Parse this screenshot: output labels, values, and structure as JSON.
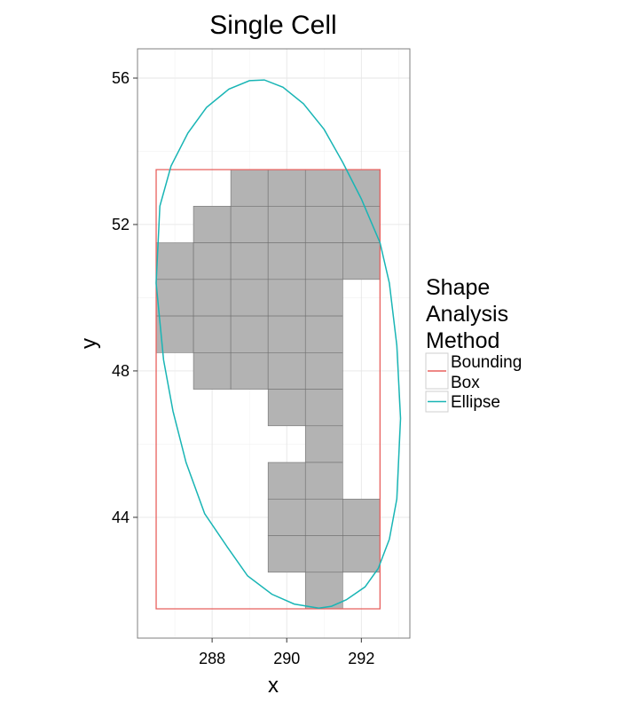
{
  "chart_data": {
    "type": "map",
    "title": "Single Cell",
    "xlabel": "x",
    "ylabel": "y",
    "xlim": [
      286.0,
      293.3
    ],
    "ylim": [
      40.7,
      56.8
    ],
    "x_ticks": [
      288,
      290,
      292
    ],
    "y_ticks": [
      44,
      48,
      52,
      56
    ],
    "x_tick_labels": [
      "288",
      "290",
      "292"
    ],
    "y_tick_labels": [
      "44",
      "48",
      "52",
      "56"
    ],
    "grid": true,
    "colors": {
      "tile_fill": "#b3b3b3",
      "tile_stroke": "#707070",
      "bounding_box": "#e8605e",
      "ellipse": "#19b5b5"
    },
    "tiles": {
      "cell_size": 1,
      "cells": [
        [
          289,
          53
        ],
        [
          290,
          53
        ],
        [
          291,
          53
        ],
        [
          292,
          53
        ],
        [
          288,
          52
        ],
        [
          289,
          52
        ],
        [
          290,
          52
        ],
        [
          291,
          52
        ],
        [
          292,
          52
        ],
        [
          287,
          51
        ],
        [
          288,
          51
        ],
        [
          289,
          51
        ],
        [
          290,
          51
        ],
        [
          291,
          51
        ],
        [
          292,
          51
        ],
        [
          287,
          50
        ],
        [
          288,
          50
        ],
        [
          289,
          50
        ],
        [
          290,
          50
        ],
        [
          291,
          50
        ],
        [
          287,
          49
        ],
        [
          288,
          49
        ],
        [
          289,
          49
        ],
        [
          290,
          49
        ],
        [
          291,
          49
        ],
        [
          288,
          48
        ],
        [
          289,
          48
        ],
        [
          290,
          48
        ],
        [
          291,
          48
        ],
        [
          290,
          47
        ],
        [
          291,
          47
        ],
        [
          291,
          46
        ],
        [
          290,
          45
        ],
        [
          291,
          45
        ],
        [
          290,
          44
        ],
        [
          291,
          44
        ],
        [
          292,
          44
        ],
        [
          290,
          43
        ],
        [
          291,
          43
        ],
        [
          292,
          43
        ],
        [
          291,
          42
        ]
      ]
    },
    "bounding_box": {
      "x_min": 286.5,
      "x_max": 292.5,
      "y_min": 41.5,
      "y_max": 53.5
    },
    "ellipse": {
      "points": [
        [
          290.86,
          41.52
        ],
        [
          290.2,
          41.63
        ],
        [
          289.6,
          41.9
        ],
        [
          288.95,
          42.4
        ],
        [
          288.4,
          43.2
        ],
        [
          287.8,
          44.1
        ],
        [
          287.3,
          45.5
        ],
        [
          286.95,
          46.9
        ],
        [
          286.7,
          48.3
        ],
        [
          286.5,
          50.4
        ],
        [
          286.6,
          52.5
        ],
        [
          286.9,
          53.6
        ],
        [
          287.35,
          54.5
        ],
        [
          287.85,
          55.2
        ],
        [
          288.45,
          55.7
        ],
        [
          289.0,
          55.93
        ],
        [
          289.4,
          55.95
        ],
        [
          289.9,
          55.75
        ],
        [
          290.45,
          55.3
        ],
        [
          291.0,
          54.6
        ],
        [
          291.5,
          53.7
        ],
        [
          292.0,
          52.7
        ],
        [
          292.5,
          51.5
        ],
        [
          292.75,
          50.4
        ],
        [
          292.95,
          48.7
        ],
        [
          293.05,
          46.7
        ],
        [
          292.95,
          44.5
        ],
        [
          292.75,
          43.4
        ],
        [
          292.45,
          42.6
        ],
        [
          292.1,
          42.1
        ],
        [
          291.6,
          41.75
        ],
        [
          291.2,
          41.57
        ],
        [
          290.86,
          41.52
        ]
      ]
    },
    "legend": {
      "position": "right",
      "title": [
        "Shape",
        "Analysis",
        "Method"
      ],
      "entries": [
        {
          "label": [
            "Bounding",
            "Box"
          ],
          "color": "#e8605e"
        },
        {
          "label": [
            "Ellipse"
          ],
          "color": "#19b5b5"
        }
      ]
    }
  }
}
